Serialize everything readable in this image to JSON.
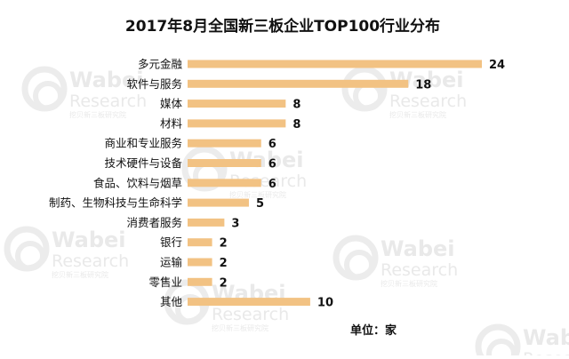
{
  "watermark": {
    "brand": "Wabei",
    "sub": "Research",
    "tag": "挖贝新三板研究院",
    "logo_color": "#ececec"
  },
  "chart_data": {
    "type": "bar",
    "orientation": "horizontal",
    "title": "2017年8月全国新三板企业TOP100行业分布",
    "categories": [
      "多元金融",
      "软件与服务",
      "媒体",
      "材料",
      "商业和专业服务",
      "技术硬件与设备",
      "食品、饮料与烟草",
      "制药、生物科技与生命科学",
      "消费者服务",
      "银行",
      "运输",
      "零售业",
      "其他"
    ],
    "values": [
      24,
      18,
      8,
      8,
      6,
      6,
      6,
      5,
      3,
      2,
      2,
      2,
      10
    ],
    "xlim": [
      0,
      24
    ],
    "unit_note": "单位：家",
    "bar_color": "#f2c283",
    "grid": false,
    "legend": "none"
  }
}
